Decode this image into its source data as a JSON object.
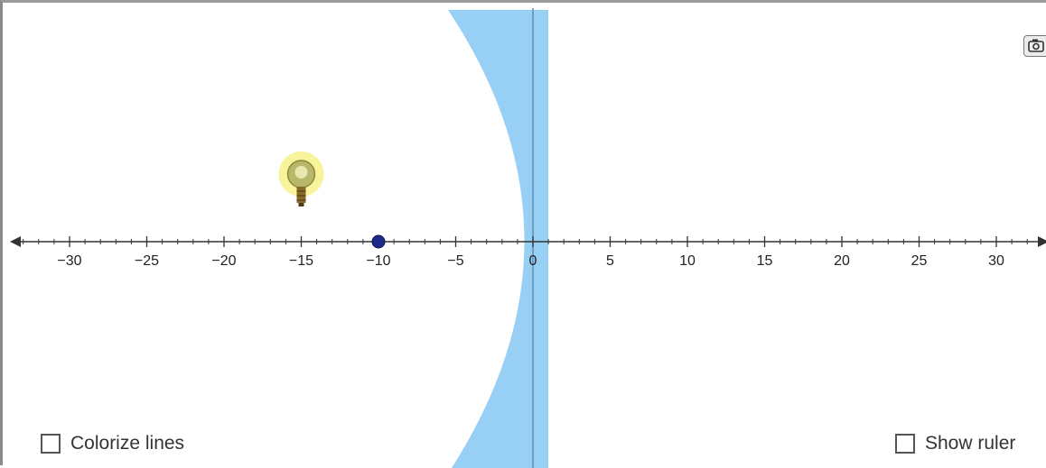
{
  "controls": {
    "colorize_lines": {
      "label": "Colorize lines",
      "checked": false
    },
    "show_ruler": {
      "label": "Show ruler",
      "checked": false
    }
  },
  "toolbar": {
    "camera_icon": "camera-icon"
  },
  "axis": {
    "min": -33,
    "max": 33,
    "major_ticks": [
      {
        "value": -30,
        "label": "−30"
      },
      {
        "value": -25,
        "label": "−25"
      },
      {
        "value": -20,
        "label": "−20"
      },
      {
        "value": -15,
        "label": "−15"
      },
      {
        "value": -10,
        "label": "−10"
      },
      {
        "value": -5,
        "label": "−5"
      },
      {
        "value": 0,
        "label": "0"
      },
      {
        "value": 5,
        "label": "5"
      },
      {
        "value": 10,
        "label": "10"
      },
      {
        "value": 15,
        "label": "15"
      },
      {
        "value": 20,
        "label": "20"
      },
      {
        "value": 25,
        "label": "25"
      },
      {
        "value": 30,
        "label": "30"
      }
    ]
  },
  "scene": {
    "light_source": {
      "icon": "light-bulb-icon",
      "x": -15
    },
    "focal_point": {
      "x": -10
    },
    "lens": {
      "type": "concave",
      "center_x": 0
    }
  },
  "colors": {
    "lens_fill": "#97cff5",
    "lens_axis": "#5b8fb5",
    "axis_line": "#333333",
    "focal_point": "#1f2a8a",
    "bulb_glow": "#f6f07a"
  }
}
